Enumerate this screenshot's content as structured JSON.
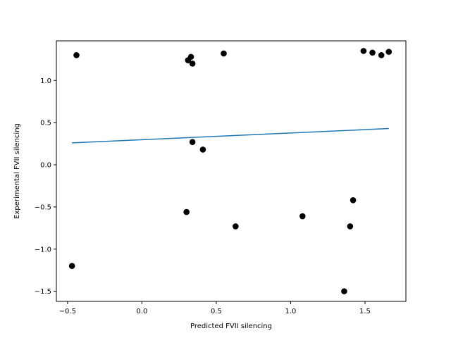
{
  "chart_data": {
    "type": "scatter",
    "title": "",
    "xlabel": "Predicted FVII silencing",
    "ylabel": "Experimental FVII silencing",
    "xlim": [
      -0.575,
      1.775
    ],
    "ylim": [
      -1.62,
      1.47
    ],
    "xticks": [
      -0.5,
      0.0,
      0.5,
      1.0,
      1.5
    ],
    "xtick_labels": [
      "−0.5",
      "0.0",
      "0.5",
      "1.0",
      "1.5"
    ],
    "yticks": [
      -1.5,
      -1.0,
      -0.5,
      0.0,
      0.5,
      1.0
    ],
    "ytick_labels": [
      "−1.5",
      "−1.0",
      "−0.5",
      "0.0",
      "0.5",
      "1.0"
    ],
    "grid": false,
    "points": {
      "color": "#000000",
      "x": [
        -0.44,
        -0.47,
        0.31,
        0.33,
        0.34,
        0.34,
        0.55,
        0.3,
        0.41,
        0.63,
        1.08,
        1.36,
        1.4,
        1.42,
        1.49,
        1.55,
        1.61,
        1.66
      ],
      "y": [
        1.3,
        -1.2,
        1.24,
        1.28,
        1.2,
        0.27,
        1.32,
        -0.56,
        0.18,
        -0.73,
        -0.61,
        -1.5,
        -0.73,
        -0.42,
        1.35,
        1.33,
        1.3,
        1.34
      ]
    },
    "fit_line": {
      "color": "#1f77b4",
      "x": [
        -0.47,
        1.66
      ],
      "y": [
        0.26,
        0.43
      ]
    }
  }
}
